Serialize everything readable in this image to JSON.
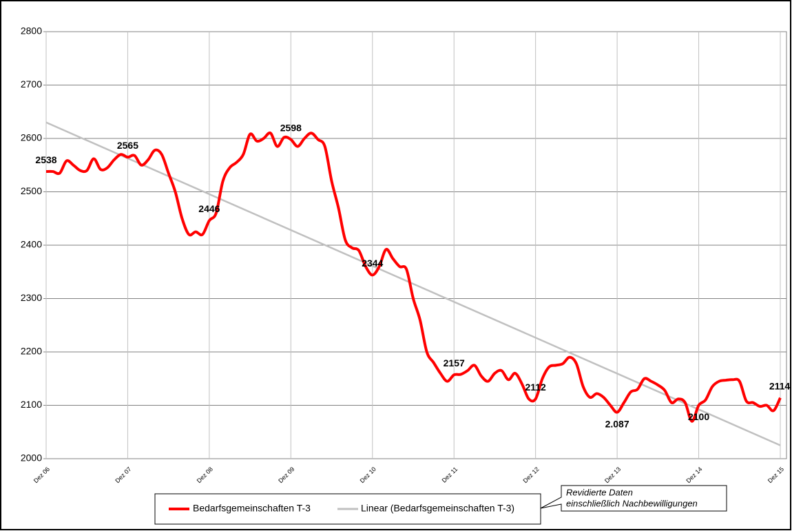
{
  "chart_data": {
    "type": "line",
    "categories": [
      "Dez 06",
      null,
      null,
      null,
      null,
      null,
      null,
      null,
      null,
      null,
      null,
      null,
      "Dez 07",
      null,
      null,
      null,
      null,
      null,
      null,
      null,
      null,
      null,
      null,
      null,
      "Dez 08",
      null,
      null,
      null,
      null,
      null,
      null,
      null,
      null,
      null,
      null,
      null,
      "Dez 09",
      null,
      null,
      null,
      null,
      null,
      null,
      null,
      null,
      null,
      null,
      null,
      "Dez 10",
      null,
      null,
      null,
      null,
      null,
      null,
      null,
      null,
      null,
      null,
      null,
      "Dez 11",
      null,
      null,
      null,
      null,
      null,
      null,
      null,
      null,
      null,
      null,
      null,
      "Dez 12",
      null,
      null,
      null,
      null,
      null,
      null,
      null,
      null,
      null,
      null,
      null,
      "Dez 13",
      null,
      null,
      null,
      null,
      null,
      null,
      null,
      null,
      null,
      null,
      null,
      "Dez 14",
      null,
      null,
      null,
      null,
      null,
      null,
      null,
      null,
      null,
      null,
      null,
      "Dez 15"
    ],
    "series": [
      {
        "name": "Bedarfsgemeinschaften T-3",
        "color": "#ff0000",
        "values": [
          2538,
          2538,
          2535,
          2558,
          2550,
          2540,
          2540,
          2562,
          2542,
          2545,
          2560,
          2570,
          2565,
          2568,
          2550,
          2560,
          2578,
          2570,
          2535,
          2500,
          2450,
          2420,
          2425,
          2420,
          2446,
          2460,
          2520,
          2545,
          2555,
          2570,
          2608,
          2595,
          2600,
          2610,
          2585,
          2602,
          2598,
          2585,
          2600,
          2610,
          2598,
          2585,
          2520,
          2470,
          2410,
          2395,
          2390,
          2360,
          2344,
          2360,
          2392,
          2375,
          2360,
          2355,
          2300,
          2260,
          2200,
          2180,
          2160,
          2145,
          2157,
          2158,
          2165,
          2175,
          2155,
          2145,
          2160,
          2165,
          2148,
          2160,
          2140,
          2112,
          2112,
          2150,
          2172,
          2175,
          2178,
          2190,
          2178,
          2135,
          2115,
          2122,
          2115,
          2100,
          2087,
          2105,
          2125,
          2130,
          2150,
          2145,
          2138,
          2128,
          2105,
          2112,
          2105,
          2070,
          2100,
          2110,
          2135,
          2145,
          2147,
          2148,
          2145,
          2108,
          2105,
          2098,
          2100,
          2090,
          2114
        ],
        "value_labels": [
          "2538",
          null,
          null,
          null,
          null,
          null,
          null,
          null,
          null,
          null,
          null,
          null,
          "2565",
          null,
          null,
          null,
          null,
          null,
          null,
          null,
          null,
          null,
          null,
          null,
          "2446",
          null,
          null,
          null,
          null,
          null,
          null,
          null,
          null,
          null,
          null,
          null,
          "2598",
          null,
          null,
          null,
          null,
          null,
          null,
          null,
          null,
          null,
          null,
          null,
          "2344",
          null,
          null,
          null,
          null,
          null,
          null,
          null,
          null,
          null,
          null,
          null,
          "2157",
          null,
          null,
          null,
          null,
          null,
          null,
          null,
          null,
          null,
          null,
          null,
          "2112",
          null,
          null,
          null,
          null,
          null,
          null,
          null,
          null,
          null,
          null,
          null,
          "2.087",
          null,
          null,
          null,
          null,
          null,
          null,
          null,
          null,
          null,
          null,
          null,
          "2100",
          null,
          null,
          null,
          null,
          null,
          null,
          null,
          null,
          null,
          null,
          null,
          "2114"
        ]
      }
    ],
    "trendline": {
      "name": "Linear (Bedarfsgemeinschaften T-3)",
      "color": "#c0c0c0",
      "values": [
        2630,
        2025
      ]
    },
    "ylim": [
      2000,
      2800
    ],
    "yticks": [
      2000,
      2100,
      2200,
      2300,
      2400,
      2500,
      2600,
      2700,
      2800
    ],
    "grid": true,
    "annotation": [
      "Revidierte Daten",
      "einschließlich  Nachbewilligungen"
    ]
  }
}
